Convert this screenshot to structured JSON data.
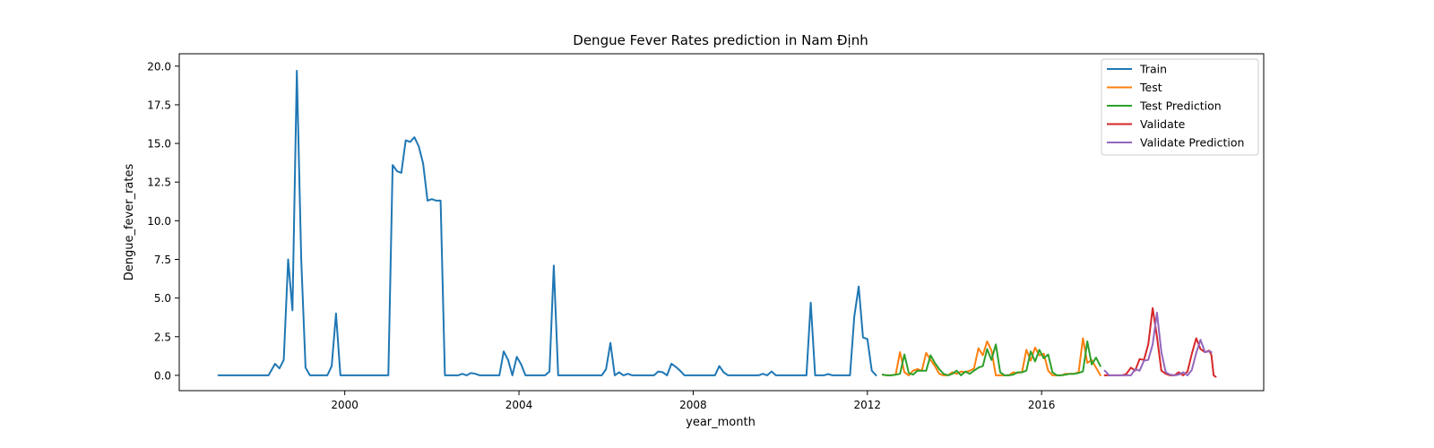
{
  "chart_data": {
    "type": "line",
    "title": "Dengue Fever Rates prediction in Nam Định",
    "xlabel": "year_month",
    "ylabel": "Dengue_fever_rates",
    "xlim": [
      1996.2,
      2021.1
    ],
    "ylim": [
      -0.99,
      20.8
    ],
    "x_ticks": [
      2000,
      2004,
      2008,
      2012,
      2016
    ],
    "x_tick_labels": [
      "2000",
      "2004",
      "2008",
      "2012",
      "2016"
    ],
    "y_ticks": [
      0.0,
      2.5,
      5.0,
      7.5,
      10.0,
      12.5,
      15.0,
      17.5,
      20.0
    ],
    "y_tick_labels": [
      "0.0",
      "2.5",
      "5.0",
      "7.5",
      "10.0",
      "12.5",
      "15.0",
      "17.5",
      "20.0"
    ],
    "grid": false,
    "legend_position": "upper right",
    "series": [
      {
        "name": "Train",
        "color": "#1f77b4",
        "points": [
          [
            1997.1,
            0
          ],
          [
            1998.25,
            0
          ],
          [
            1998.4,
            0.75
          ],
          [
            1998.5,
            0.45
          ],
          [
            1998.6,
            1.0
          ],
          [
            1998.7,
            7.5
          ],
          [
            1998.8,
            4.2
          ],
          [
            1998.9,
            19.7
          ],
          [
            1999.0,
            7.5
          ],
          [
            1999.1,
            0.5
          ],
          [
            1999.2,
            0
          ],
          [
            1999.6,
            0
          ],
          [
            1999.7,
            0.6
          ],
          [
            1999.8,
            4.0
          ],
          [
            1999.9,
            0
          ],
          [
            2000.5,
            0
          ],
          [
            2001.0,
            0
          ],
          [
            2001.1,
            13.6
          ],
          [
            2001.2,
            13.2
          ],
          [
            2001.3,
            13.1
          ],
          [
            2001.4,
            15.2
          ],
          [
            2001.5,
            15.1
          ],
          [
            2001.6,
            15.4
          ],
          [
            2001.7,
            14.8
          ],
          [
            2001.8,
            13.7
          ],
          [
            2001.9,
            11.3
          ],
          [
            2002.0,
            11.4
          ],
          [
            2002.1,
            11.3
          ],
          [
            2002.2,
            11.3
          ],
          [
            2002.3,
            0
          ],
          [
            2002.6,
            0
          ],
          [
            2002.7,
            0.1
          ],
          [
            2002.8,
            0
          ],
          [
            2002.9,
            0.15
          ],
          [
            2003.0,
            0.1
          ],
          [
            2003.1,
            0
          ],
          [
            2003.55,
            0
          ],
          [
            2003.65,
            1.55
          ],
          [
            2003.75,
            1.0
          ],
          [
            2003.85,
            0
          ],
          [
            2003.95,
            1.2
          ],
          [
            2004.05,
            0.7
          ],
          [
            2004.15,
            0
          ],
          [
            2004.6,
            0
          ],
          [
            2004.7,
            0.25
          ],
          [
            2004.8,
            7.1
          ],
          [
            2004.9,
            0
          ],
          [
            2005.9,
            0
          ],
          [
            2006.0,
            0.4
          ],
          [
            2006.1,
            2.1
          ],
          [
            2006.2,
            0
          ],
          [
            2006.3,
            0.2
          ],
          [
            2006.4,
            0
          ],
          [
            2006.5,
            0.1
          ],
          [
            2006.6,
            0
          ],
          [
            2007.1,
            0
          ],
          [
            2007.2,
            0.25
          ],
          [
            2007.3,
            0.2
          ],
          [
            2007.4,
            0
          ],
          [
            2007.5,
            0.75
          ],
          [
            2007.6,
            0.55
          ],
          [
            2007.7,
            0.3
          ],
          [
            2007.8,
            0
          ],
          [
            2008.5,
            0
          ],
          [
            2008.6,
            0.6
          ],
          [
            2008.7,
            0.2
          ],
          [
            2008.8,
            0
          ],
          [
            2009.5,
            0
          ],
          [
            2009.6,
            0.1
          ],
          [
            2009.7,
            0
          ],
          [
            2009.8,
            0.25
          ],
          [
            2009.9,
            0
          ],
          [
            2010.6,
            0
          ],
          [
            2010.7,
            4.7
          ],
          [
            2010.8,
            0
          ],
          [
            2011.0,
            0
          ],
          [
            2011.1,
            0.08
          ],
          [
            2011.2,
            0
          ],
          [
            2011.6,
            0
          ],
          [
            2011.7,
            3.8
          ],
          [
            2011.8,
            5.75
          ],
          [
            2011.9,
            2.45
          ],
          [
            2012.0,
            2.35
          ],
          [
            2012.1,
            0.3
          ],
          [
            2012.2,
            0
          ]
        ]
      },
      {
        "name": "Test",
        "color": "#ff7f0e",
        "points": [
          [
            2012.35,
            0.05
          ],
          [
            2012.45,
            0
          ],
          [
            2012.55,
            0
          ],
          [
            2012.65,
            0.05
          ],
          [
            2012.75,
            1.5
          ],
          [
            2012.85,
            0.2
          ],
          [
            2012.95,
            0
          ],
          [
            2013.05,
            0.3
          ],
          [
            2013.15,
            0.4
          ],
          [
            2013.25,
            0.3
          ],
          [
            2013.35,
            1.45
          ],
          [
            2013.45,
            1.0
          ],
          [
            2013.55,
            0.6
          ],
          [
            2013.65,
            0.1
          ],
          [
            2013.75,
            0
          ],
          [
            2013.85,
            0
          ],
          [
            2013.95,
            0.2
          ],
          [
            2014.05,
            0.1
          ],
          [
            2014.15,
            0.25
          ],
          [
            2014.25,
            0.2
          ],
          [
            2014.35,
            0.3
          ],
          [
            2014.45,
            0.45
          ],
          [
            2014.55,
            1.75
          ],
          [
            2014.65,
            1.3
          ],
          [
            2014.75,
            2.2
          ],
          [
            2014.85,
            1.6
          ],
          [
            2014.95,
            0
          ],
          [
            2015.05,
            0
          ],
          [
            2015.15,
            0
          ],
          [
            2015.25,
            0
          ],
          [
            2015.35,
            0.2
          ],
          [
            2015.45,
            0.15
          ],
          [
            2015.55,
            0.2
          ],
          [
            2015.65,
            1.65
          ],
          [
            2015.75,
            0.95
          ],
          [
            2015.85,
            1.8
          ],
          [
            2015.95,
            1.3
          ],
          [
            2016.05,
            1.4
          ],
          [
            2016.15,
            0.3
          ],
          [
            2016.25,
            0
          ],
          [
            2016.35,
            0
          ],
          [
            2016.45,
            0
          ],
          [
            2016.55,
            0.1
          ],
          [
            2016.65,
            0.1
          ],
          [
            2016.75,
            0.1
          ],
          [
            2016.85,
            0.2
          ],
          [
            2016.95,
            2.4
          ],
          [
            2017.05,
            0.8
          ],
          [
            2017.15,
            1.0
          ],
          [
            2017.25,
            0.5
          ],
          [
            2017.35,
            0
          ]
        ]
      },
      {
        "name": "Test Prediction",
        "color": "#2ca02c",
        "points": [
          [
            2012.35,
            0.05
          ],
          [
            2012.45,
            0
          ],
          [
            2012.55,
            0
          ],
          [
            2012.65,
            0.05
          ],
          [
            2012.75,
            0.1
          ],
          [
            2012.85,
            1.35
          ],
          [
            2012.95,
            0.15
          ],
          [
            2013.05,
            0.05
          ],
          [
            2013.15,
            0.3
          ],
          [
            2013.25,
            0.3
          ],
          [
            2013.35,
            0.3
          ],
          [
            2013.45,
            1.3
          ],
          [
            2013.55,
            0.8
          ],
          [
            2013.65,
            0.4
          ],
          [
            2013.75,
            0.1
          ],
          [
            2013.85,
            0
          ],
          [
            2013.95,
            0.1
          ],
          [
            2014.05,
            0.3
          ],
          [
            2014.15,
            0
          ],
          [
            2014.25,
            0.25
          ],
          [
            2014.35,
            0.1
          ],
          [
            2014.45,
            0.3
          ],
          [
            2014.55,
            0.5
          ],
          [
            2014.65,
            0.6
          ],
          [
            2014.75,
            1.7
          ],
          [
            2014.85,
            1.0
          ],
          [
            2014.95,
            2.0
          ],
          [
            2015.05,
            0.2
          ],
          [
            2015.15,
            0
          ],
          [
            2015.25,
            0
          ],
          [
            2015.35,
            0.05
          ],
          [
            2015.45,
            0.2
          ],
          [
            2015.55,
            0.2
          ],
          [
            2015.65,
            0.3
          ],
          [
            2015.75,
            1.55
          ],
          [
            2015.85,
            0.9
          ],
          [
            2015.95,
            1.65
          ],
          [
            2016.05,
            1.1
          ],
          [
            2016.15,
            1.35
          ],
          [
            2016.25,
            0.2
          ],
          [
            2016.35,
            0
          ],
          [
            2016.45,
            0
          ],
          [
            2016.55,
            0.05
          ],
          [
            2016.65,
            0.1
          ],
          [
            2016.75,
            0.1
          ],
          [
            2016.85,
            0.15
          ],
          [
            2016.95,
            0.25
          ],
          [
            2017.05,
            2.2
          ],
          [
            2017.15,
            0.7
          ],
          [
            2017.25,
            1.15
          ],
          [
            2017.35,
            0.6
          ]
        ]
      },
      {
        "name": "Validate",
        "color": "#d62728",
        "points": [
          [
            2017.45,
            0
          ],
          [
            2017.55,
            0
          ],
          [
            2017.65,
            0
          ],
          [
            2017.75,
            0
          ],
          [
            2017.85,
            0
          ],
          [
            2017.95,
            0.1
          ],
          [
            2018.05,
            0.5
          ],
          [
            2018.15,
            0.3
          ],
          [
            2018.25,
            1.05
          ],
          [
            2018.35,
            1.0
          ],
          [
            2018.45,
            2.0
          ],
          [
            2018.55,
            4.35
          ],
          [
            2018.65,
            2.5
          ],
          [
            2018.75,
            0.3
          ],
          [
            2018.85,
            0.1
          ],
          [
            2018.95,
            0
          ],
          [
            2019.05,
            0
          ],
          [
            2019.15,
            0.2
          ],
          [
            2019.25,
            0
          ],
          [
            2019.35,
            0.25
          ],
          [
            2019.45,
            1.4
          ],
          [
            2019.55,
            2.4
          ],
          [
            2019.65,
            1.7
          ],
          [
            2019.75,
            1.5
          ],
          [
            2019.85,
            1.6
          ],
          [
            2019.9,
            1.3
          ],
          [
            2019.95,
            0
          ],
          [
            2020.0,
            -0.1
          ]
        ]
      },
      {
        "name": "Validate Prediction",
        "color": "#9467bd",
        "points": [
          [
            2017.45,
            0.3
          ],
          [
            2017.55,
            0
          ],
          [
            2017.65,
            0
          ],
          [
            2017.75,
            0
          ],
          [
            2017.85,
            0
          ],
          [
            2017.95,
            0
          ],
          [
            2018.05,
            0
          ],
          [
            2018.15,
            0.4
          ],
          [
            2018.25,
            0.3
          ],
          [
            2018.35,
            0.95
          ],
          [
            2018.45,
            1.0
          ],
          [
            2018.55,
            2.0
          ],
          [
            2018.65,
            4.05
          ],
          [
            2018.75,
            1.5
          ],
          [
            2018.85,
            0.2
          ],
          [
            2018.95,
            0.05
          ],
          [
            2019.05,
            0
          ],
          [
            2019.15,
            0.05
          ],
          [
            2019.25,
            0.2
          ],
          [
            2019.35,
            0
          ],
          [
            2019.45,
            0.35
          ],
          [
            2019.55,
            1.45
          ],
          [
            2019.65,
            2.3
          ],
          [
            2019.75,
            1.5
          ],
          [
            2019.85,
            1.55
          ],
          [
            2019.9,
            1.5
          ]
        ]
      }
    ]
  }
}
